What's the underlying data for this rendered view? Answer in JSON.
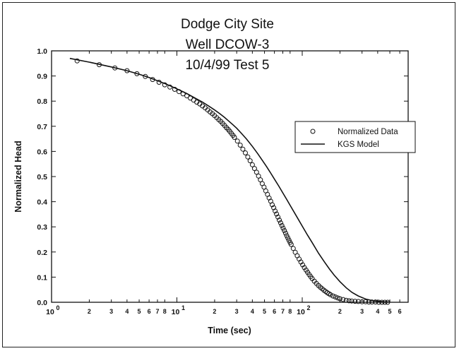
{
  "chart_data": {
    "type": "scatter",
    "title_lines": [
      "Dodge City Site",
      "Well DCOW-3",
      "10/4/99 Test 5"
    ],
    "xlabel": "Time (sec)",
    "ylabel": "Normalized Head",
    "x_scale": "log",
    "xlim": [
      1,
      700
    ],
    "ylim": [
      0,
      1.0
    ],
    "grid": false,
    "legend_position": "right-middle",
    "x_major_ticks": [
      {
        "value": 1,
        "label": "10",
        "exp": "0"
      },
      {
        "value": 10,
        "label": "10",
        "exp": "1"
      },
      {
        "value": 100,
        "label": "10",
        "exp": "2"
      }
    ],
    "x_minor_ticks": [
      {
        "value": 2,
        "label": "2"
      },
      {
        "value": 3,
        "label": "3"
      },
      {
        "value": 4,
        "label": "4"
      },
      {
        "value": 5,
        "label": "5"
      },
      {
        "value": 6,
        "label": "6"
      },
      {
        "value": 7,
        "label": "7"
      },
      {
        "value": 8,
        "label": "8"
      },
      {
        "value": 20,
        "label": "2"
      },
      {
        "value": 30,
        "label": "3"
      },
      {
        "value": 40,
        "label": "4"
      },
      {
        "value": 50,
        "label": "5"
      },
      {
        "value": 60,
        "label": "6"
      },
      {
        "value": 70,
        "label": "7"
      },
      {
        "value": 80,
        "label": "8"
      },
      {
        "value": 200,
        "label": "2"
      },
      {
        "value": 300,
        "label": "3"
      },
      {
        "value": 400,
        "label": "4"
      },
      {
        "value": 500,
        "label": "5"
      },
      {
        "value": 600,
        "label": "6"
      }
    ],
    "y_ticks": [
      {
        "value": 0.0,
        "label": "0.0"
      },
      {
        "value": 0.1,
        "label": "0.1"
      },
      {
        "value": 0.2,
        "label": "0.2"
      },
      {
        "value": 0.3,
        "label": "0.3"
      },
      {
        "value": 0.4,
        "label": "0.4"
      },
      {
        "value": 0.5,
        "label": "0.5"
      },
      {
        "value": 0.6,
        "label": "0.6"
      },
      {
        "value": 0.7,
        "label": "0.7"
      },
      {
        "value": 0.8,
        "label": "0.8"
      },
      {
        "value": 0.9,
        "label": "0.9"
      },
      {
        "value": 1.0,
        "label": "1.0"
      }
    ],
    "series": [
      {
        "name": "Normalized Data",
        "type": "scatter",
        "marker": "open-circle",
        "x": [
          1.6,
          2.4,
          3.2,
          4.0,
          4.8,
          5.6,
          6.4,
          7.2,
          8.0,
          8.8,
          9.6,
          10.4,
          11.2,
          12.0,
          12.8,
          13.6,
          14.4,
          15.2,
          16.0,
          16.8,
          17.6,
          18.4,
          19.2,
          20.0,
          20.8,
          21.6,
          22.4,
          23.2,
          24.0,
          24.8,
          25.6,
          26.4,
          27.2,
          28.0,
          28.8,
          30.4,
          32.0,
          33.6,
          35.2,
          36.8,
          38.4,
          40.0,
          41.6,
          43.2,
          44.8,
          46.4,
          48.0,
          49.6,
          51.2,
          52.8,
          54.4,
          56.0,
          57.6,
          59.2,
          60.8,
          62.4,
          64.0,
          65.6,
          67.2,
          68.8,
          70.4,
          72.0,
          73.6,
          75.2,
          76.8,
          78.4,
          80.0,
          81.6,
          84.8,
          88.0,
          91.2,
          94.4,
          97.6,
          100.8,
          104.0,
          107.2,
          110.4,
          113.6,
          116.8,
          120.0,
          124.8,
          129.6,
          134.4,
          139.2,
          144.0,
          148.8,
          153.6,
          158.4,
          163.2,
          168.0,
          176.0,
          184.0,
          192.0,
          200.0,
          212.0,
          224.0,
          236.0,
          248.0,
          264.0,
          280.0,
          300.0,
          320.0,
          340.0,
          360.0,
          384.0,
          408.0,
          432.0,
          456.0,
          480.0
        ],
        "y": [
          0.96,
          0.945,
          0.932,
          0.921,
          0.909,
          0.898,
          0.886,
          0.875,
          0.865,
          0.856,
          0.847,
          0.838,
          0.829,
          0.821,
          0.812,
          0.804,
          0.796,
          0.789,
          0.781,
          0.773,
          0.765,
          0.757,
          0.75,
          0.742,
          0.734,
          0.726,
          0.719,
          0.711,
          0.703,
          0.695,
          0.688,
          0.68,
          0.672,
          0.664,
          0.656,
          0.641,
          0.625,
          0.609,
          0.594,
          0.578,
          0.563,
          0.547,
          0.532,
          0.517,
          0.502,
          0.487,
          0.472,
          0.458,
          0.443,
          0.429,
          0.415,
          0.402,
          0.388,
          0.376,
          0.363,
          0.351,
          0.339,
          0.327,
          0.316,
          0.305,
          0.295,
          0.285,
          0.275,
          0.265,
          0.256,
          0.247,
          0.238,
          0.23,
          0.214,
          0.199,
          0.185,
          0.172,
          0.16,
          0.149,
          0.138,
          0.128,
          0.119,
          0.11,
          0.102,
          0.094,
          0.084,
          0.075,
          0.067,
          0.06,
          0.054,
          0.048,
          0.043,
          0.038,
          0.034,
          0.03,
          0.025,
          0.021,
          0.017,
          0.014,
          0.011,
          0.008,
          0.006,
          0.005,
          0.004,
          0.003,
          0.002,
          0.002,
          0.001,
          0.001,
          0.001,
          0.0,
          0.0,
          0.0,
          0.0
        ]
      },
      {
        "name": "KGS Model",
        "type": "line",
        "x": [
          1.4,
          2,
          3,
          4,
          5,
          6,
          7,
          8,
          9,
          10,
          12,
          14,
          16,
          18,
          20,
          22,
          24,
          26,
          28,
          30,
          33,
          36,
          40,
          44,
          48,
          52,
          56,
          60,
          65,
          70,
          75,
          80,
          90,
          100,
          110,
          120,
          135,
          150,
          165,
          180,
          200,
          225,
          250,
          280,
          320,
          360,
          400,
          450,
          500
        ],
        "y": [
          0.97,
          0.955,
          0.936,
          0.921,
          0.907,
          0.894,
          0.881,
          0.87,
          0.859,
          0.849,
          0.83,
          0.812,
          0.796,
          0.78,
          0.765,
          0.75,
          0.735,
          0.72,
          0.706,
          0.692,
          0.67,
          0.649,
          0.62,
          0.592,
          0.565,
          0.539,
          0.514,
          0.49,
          0.462,
          0.435,
          0.41,
          0.386,
          0.342,
          0.303,
          0.268,
          0.237,
          0.195,
          0.161,
          0.132,
          0.108,
          0.082,
          0.057,
          0.039,
          0.025,
          0.013,
          0.007,
          0.004,
          0.002,
          0.001
        ]
      }
    ]
  }
}
